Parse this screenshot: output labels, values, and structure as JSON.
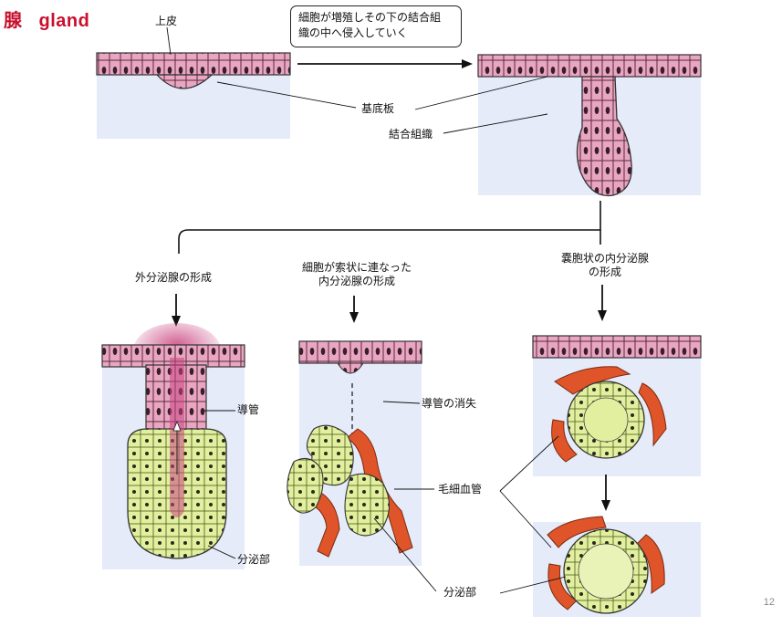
{
  "title": {
    "kanji": "腺",
    "english": "gland"
  },
  "callout": {
    "line1": "細胞が増殖しその下の結合組",
    "line2": "織の中へ侵入していく"
  },
  "labels": {
    "epidermis": "上皮",
    "basement_membrane": "基底板",
    "connective_tissue": "結合組織",
    "exocrine_formation": "外分泌腺の形成",
    "endocrine_cord_line1": "細胞が索状に連なった",
    "endocrine_cord_line2": "内分泌腺の形成",
    "follicular_line1": "嚢胞状の内分泌腺",
    "follicular_line2": "の形成",
    "duct": "導管",
    "duct_loss": "導管の消失",
    "capillary": "毛細血管",
    "secretory_part_left": "分泌部",
    "secretory_part_center": "分泌部"
  },
  "page_number": "12",
  "colors": {
    "title": "#c8102e",
    "epithelium": "#e9a6c3",
    "secretory": "#e2ef9e",
    "capillary": "#e0542a",
    "connective": "#dfe6f7",
    "secretion_glow": "#c9447f"
  }
}
